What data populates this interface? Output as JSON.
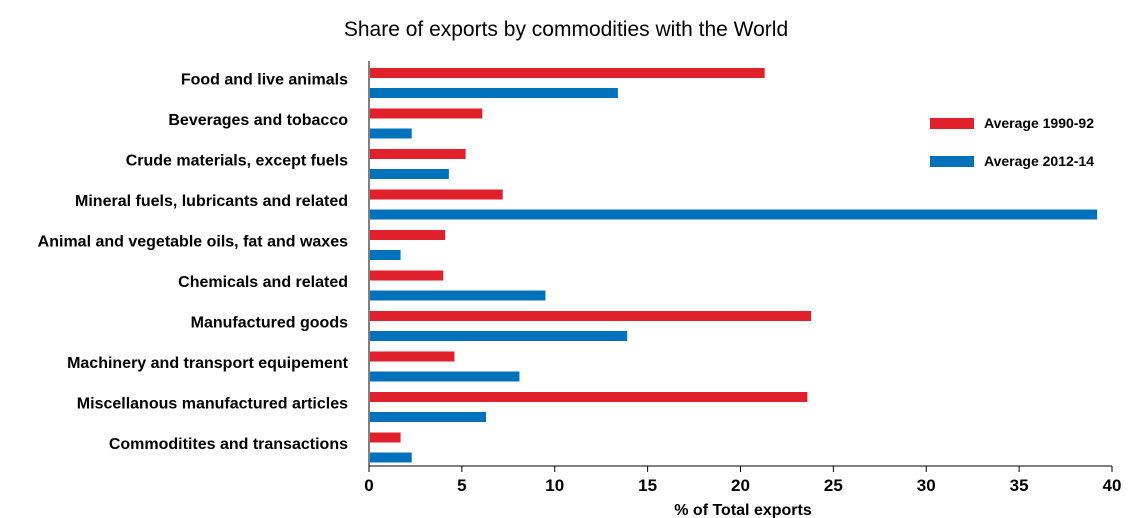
{
  "chart_data": {
    "type": "bar",
    "orientation": "horizontal",
    "title": "Share of exports by commodities with the World",
    "xlabel": "% of Total exports",
    "ylabel": "",
    "xlim": [
      0,
      40
    ],
    "xticks": [
      "0",
      "5",
      "10",
      "15",
      "20",
      "25",
      "30",
      "35",
      "40"
    ],
    "grid": false,
    "legend_position": "top-right",
    "categories": [
      "Food and live animals",
      "Beverages and tobacco",
      "Crude materials, except fuels",
      "Mineral fuels, lubricants and related",
      "Animal and vegetable oils, fat and waxes",
      "Chemicals and related",
      "Manufactured goods",
      "Machinery and transport equipement",
      "Miscellanous manufactured articles",
      "Commoditites and transactions"
    ],
    "series": [
      {
        "name": "Average 1990-92",
        "color": "#e0202b",
        "values": [
          21.3,
          6.1,
          5.2,
          7.2,
          4.1,
          4.0,
          23.8,
          4.6,
          23.6,
          1.7
        ]
      },
      {
        "name": "Average 2012-14",
        "color": "#0072bc",
        "values": [
          13.4,
          2.3,
          4.3,
          39.2,
          1.7,
          9.5,
          13.9,
          8.1,
          6.3,
          2.3
        ]
      }
    ]
  }
}
